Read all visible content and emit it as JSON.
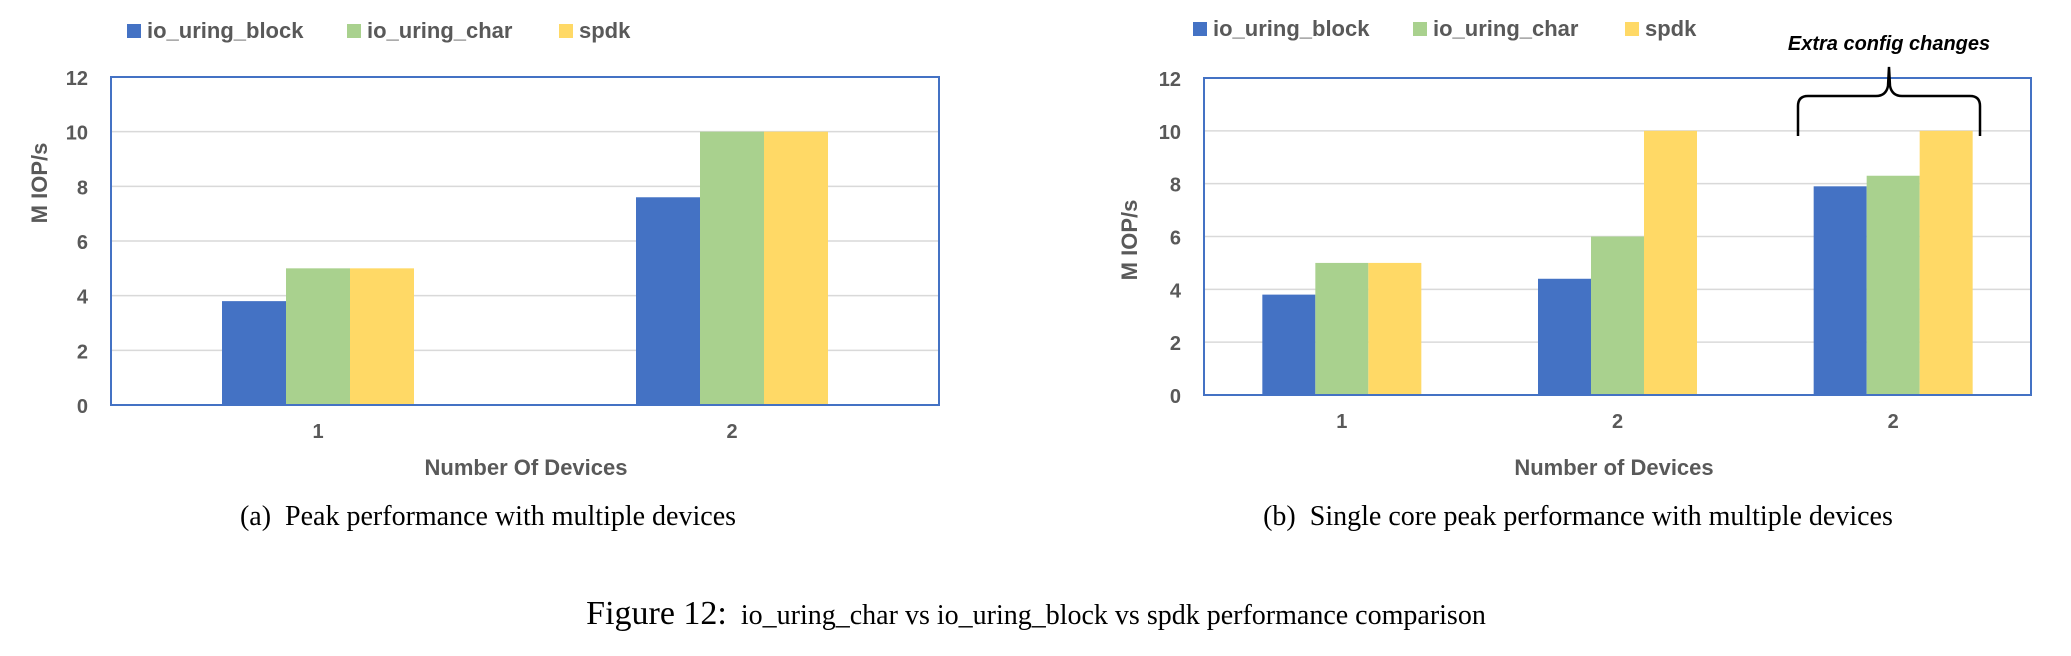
{
  "chart_data": [
    {
      "type": "bar",
      "categories": [
        "1",
        "2"
      ],
      "series": [
        {
          "name": "io_uring_block",
          "values": [
            3.8,
            7.6
          ]
        },
        {
          "name": "io_uring_char",
          "values": [
            5.0,
            10.0
          ]
        },
        {
          "name": "spdk",
          "values": [
            5.0,
            10.0
          ]
        }
      ],
      "xlabel": "Number Of Devices",
      "ylabel": "M IOP/s",
      "ylim": [
        0,
        12
      ],
      "yticks": [
        "0",
        "2",
        "4",
        "6",
        "8",
        "10",
        "12"
      ],
      "grid": true,
      "legend": "top-left",
      "caption": "(a)  Peak performance with multiple devices"
    },
    {
      "type": "bar",
      "categories": [
        "1",
        "2",
        "2"
      ],
      "series": [
        {
          "name": "io_uring_block",
          "values": [
            3.8,
            4.4,
            7.9
          ]
        },
        {
          "name": "io_uring_char",
          "values": [
            5.0,
            6.0,
            8.3
          ]
        },
        {
          "name": "spdk",
          "values": [
            5.0,
            10.0,
            10.0
          ]
        }
      ],
      "xlabel": "Number of Devices",
      "ylabel": "M IOP/s",
      "ylim": [
        0,
        12
      ],
      "yticks": [
        "0",
        "2",
        "4",
        "6",
        "8",
        "10",
        "12"
      ],
      "grid": true,
      "legend": "top-left",
      "annotation": "Extra config changes",
      "caption": "(b)  Single core peak performance with multiple devices"
    }
  ],
  "colors": {
    "io_uring_block": "#4472C4",
    "io_uring_char": "#A9D18E",
    "spdk": "#FFD966",
    "axis_frame": "#4472C4",
    "grid": "#D9D9D9",
    "text": "#595959"
  },
  "figure_caption": {
    "label": "Figure 12:",
    "text": "io_uring_char vs io_uring_block vs spdk performance comparison"
  }
}
